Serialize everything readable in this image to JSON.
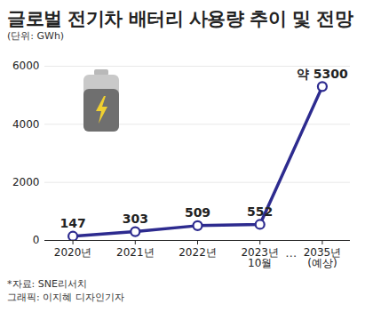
{
  "chart_data": {
    "type": "line",
    "title": "글로벌 전기차 배터리 사용량 추이 및 전망",
    "subtitle": "(단위: GWh)",
    "caption": [
      "*자료: SNE리서치",
      "그래픽: 이지혜 디자인기자"
    ],
    "categories": [
      "2020년",
      "2021년",
      "2022년",
      "2023년\n10월",
      "2035년\n(예상)"
    ],
    "values": [
      147,
      303,
      509,
      552,
      5300
    ],
    "value_labels": [
      "147",
      "303",
      "509",
      "552",
      "약 5300"
    ],
    "annotation": "…",
    "color": "#2d2b8f",
    "marker": "circle",
    "line_style": "solid",
    "ylim": [
      0,
      6000
    ],
    "yticks": [
      0,
      2000,
      4000,
      6000
    ],
    "grid": true,
    "data_labels": true
  }
}
